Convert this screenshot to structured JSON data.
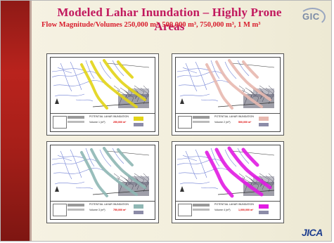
{
  "slide": {
    "title": "Modeled Lahar Inundation – Highly Prone Areas",
    "subtitle": "Flow Magnitude/Volumes 250,000 m³, 500,000 m³, 750,000 m³, 1 M m³",
    "logo_text": "GIC",
    "footer_logo": "JICA"
  },
  "panels": [
    {
      "id": "p1",
      "legend_title": "POTENTIAL LAHAR INUNDATION",
      "legend_volume_label": "Volume 1 (m³)",
      "legend_volume": "250,000 m³",
      "color": "#e3d417"
    },
    {
      "id": "p2",
      "legend_title": "POTENTIAL LAHAR INUNDATION",
      "legend_volume_label": "Volume 2 (m³)",
      "legend_volume": "500,000 m³",
      "color": "#e8b9b0"
    },
    {
      "id": "p3",
      "legend_title": "POTENTIAL LAHAR INUNDATION",
      "legend_volume_label": "Volume 3 (m³)",
      "legend_volume": "750,000 m³",
      "color": "#8fb7b4"
    },
    {
      "id": "p4",
      "legend_title": "POTENTIAL LAHAR INUNDATION",
      "legend_volume_label": "Volume 4 (m³)",
      "legend_volume": "1,000,000 m³",
      "color": "#e21be3"
    }
  ],
  "colors": {
    "title": "#c01a5c",
    "subtitle": "#d81d2c",
    "sidebar": "#a71f19",
    "jica": "#1f3f8f"
  }
}
